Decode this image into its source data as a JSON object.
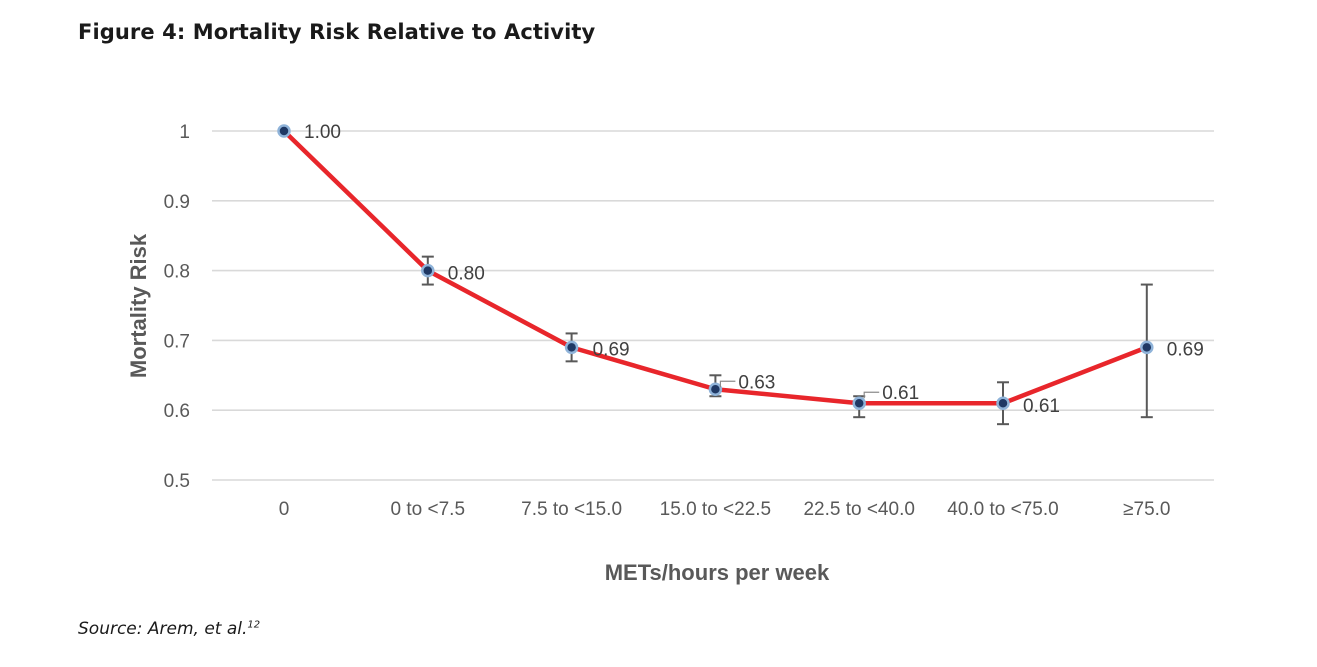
{
  "figure_title": "Figure 4: Mortality Risk Relative to Activity",
  "source": {
    "text": "Source: Arem, et al.",
    "ref": "12"
  },
  "chart_data": {
    "type": "line",
    "title": "",
    "xlabel": "METs/hours per week",
    "ylabel": "Mortality Risk",
    "categories": [
      "0",
      "0 to <7.5",
      "7.5 to <15.0",
      "15.0 to <22.5",
      "22.5 to <40.0",
      "40.0 to <75.0",
      "≥75.0"
    ],
    "values": [
      1.0,
      0.8,
      0.69,
      0.63,
      0.61,
      0.61,
      0.69
    ],
    "data_labels": [
      "1.00",
      "0.80",
      "0.69",
      "0.63",
      "0.61",
      "0.61",
      "0.69"
    ],
    "error_bars": [
      null,
      [
        0.78,
        0.82
      ],
      [
        0.67,
        0.71
      ],
      [
        0.62,
        0.65
      ],
      [
        0.59,
        0.62
      ],
      [
        0.58,
        0.64
      ],
      [
        0.59,
        0.78
      ]
    ],
    "ylim": [
      0.5,
      1.0
    ],
    "yticks": [
      "0.5",
      "0.6",
      "0.7",
      "0.8",
      "0.9",
      "1"
    ],
    "grid": true,
    "line_color": "#e8262b",
    "marker_color": "#1f3864",
    "marker_edge_color": "#8fb3d9",
    "legend": "none"
  }
}
